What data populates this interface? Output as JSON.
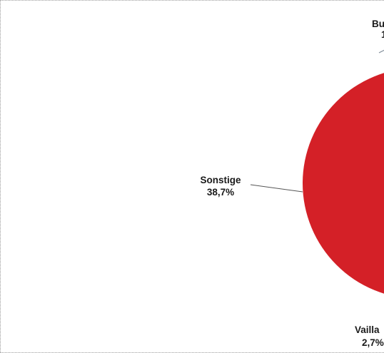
{
  "chart_data": {
    "type": "pie",
    "title": "",
    "slices": [
      {
        "label": "Sonstige",
        "value_text": "38,7%",
        "value": 38.7,
        "color": "#d42027"
      },
      {
        "label": "Vailla",
        "value_text": "2,7%",
        "value": 2.7,
        "color": "#d42027"
      },
      {
        "label": "Bu",
        "value_text": "",
        "value": null,
        "color": "#d42027"
      }
    ],
    "legend": "none",
    "label_lines": true
  }
}
